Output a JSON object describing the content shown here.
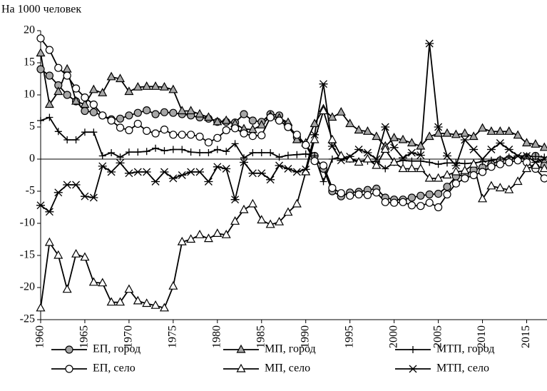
{
  "chart_data": {
    "type": "line",
    "y_label": "На 1000 человек",
    "x": [
      1960,
      1961,
      1962,
      1963,
      1964,
      1965,
      1966,
      1967,
      1968,
      1969,
      1970,
      1971,
      1972,
      1973,
      1974,
      1975,
      1976,
      1977,
      1978,
      1979,
      1980,
      1981,
      1982,
      1983,
      1984,
      1985,
      1986,
      1987,
      1988,
      1989,
      1990,
      1991,
      1992,
      1993,
      1994,
      1995,
      1996,
      1997,
      1998,
      1999,
      2000,
      2001,
      2002,
      2003,
      2004,
      2005,
      2006,
      2007,
      2008,
      2009,
      2010,
      2011,
      2012,
      2013,
      2014,
      2015,
      2016,
      2017
    ],
    "xlim": [
      1960,
      2017.3
    ],
    "xticks": [
      1960,
      1965,
      1970,
      1975,
      1980,
      1985,
      1990,
      1995,
      2000,
      2005,
      2010,
      2015
    ],
    "ylim": [
      -25,
      20
    ],
    "yticks": [
      -25,
      -20,
      -15,
      -10,
      -5,
      0,
      5,
      10,
      15,
      20
    ],
    "zero_line": true,
    "series": [
      {
        "name": "ЕП, город",
        "color": "#000000",
        "marker": "circle",
        "marker_fill": "#a6a6a6",
        "values": [
          14,
          13,
          11.5,
          10,
          9,
          7.5,
          7.3,
          6.8,
          6.2,
          6.3,
          6.8,
          7.2,
          7.6,
          7,
          7.3,
          7.2,
          7,
          6.8,
          6.5,
          6.3,
          5.8,
          5.8,
          5.7,
          7,
          6,
          5.8,
          7,
          6.8,
          5,
          3.4,
          2.2,
          0.5,
          -1.5,
          -5,
          -5.8,
          -5.2,
          -5.1,
          -4.8,
          -4.6,
          -6,
          -6.3,
          -6.3,
          -6,
          -5.7,
          -5.5,
          -5.4,
          -4.3,
          -2.7,
          -2.4,
          -1.7,
          -1.3,
          -0.8,
          -0.2,
          0,
          0.1,
          0.3,
          0.5,
          -1
        ]
      },
      {
        "name": "МП, город",
        "color": "#000000",
        "marker": "triangle",
        "marker_fill": "#a6a6a6",
        "values": [
          16.5,
          8.5,
          10.5,
          14,
          9,
          8.5,
          10.8,
          10.3,
          12.8,
          12.5,
          10.5,
          11.2,
          11.3,
          11.3,
          11.2,
          10.8,
          7.5,
          7.5,
          7,
          6.5,
          5.8,
          6,
          5.5,
          4.7,
          4.6,
          5.3,
          6.7,
          6.4,
          5.7,
          3,
          2.5,
          5.5,
          7.8,
          6.5,
          7.3,
          5.5,
          4.5,
          4.3,
          3.5,
          2,
          3.3,
          3,
          2.5,
          2,
          3.5,
          4,
          4,
          3.8,
          4,
          3.5,
          4.8,
          4.3,
          4.3,
          4.3,
          3.7,
          2.5,
          2.3,
          1.8
        ]
      },
      {
        "name": "МТП, город",
        "color": "#000000",
        "marker": "plus",
        "marker_fill": "#000000",
        "values": [
          6,
          6.5,
          4.3,
          3,
          3,
          4.2,
          4.2,
          0.5,
          1,
          0.3,
          1.1,
          1.1,
          1.2,
          1.7,
          1.3,
          1.5,
          1.5,
          1.1,
          1,
          1,
          1.5,
          1.2,
          2.4,
          0.2,
          1,
          1,
          1,
          0.3,
          0.6,
          0.7,
          0.8,
          0.5,
          -3.5,
          0,
          0.4,
          0,
          -0.3,
          -0.3,
          -0.4,
          -1.5,
          -0.5,
          -0.2,
          -0.3,
          -0.3,
          -0.5,
          -0.8,
          -0.6,
          -0.6,
          -0.7,
          -0.6,
          -0.4,
          -0.2,
          0,
          0.3,
          0.2,
          0.5,
          0.4,
          0.3
        ]
      },
      {
        "name": "ЕП, село",
        "color": "#000000",
        "marker": "circle",
        "marker_fill": "#ffffff",
        "values": [
          18.8,
          17,
          14.2,
          13,
          11,
          9.6,
          8.5,
          6.8,
          6,
          4.9,
          4.5,
          5.5,
          4.4,
          4,
          4.6,
          3.8,
          3.8,
          3.8,
          3.5,
          2.6,
          3.3,
          4.5,
          4.8,
          4,
          3.6,
          3.7,
          6.5,
          6,
          5,
          3.8,
          2.2,
          -0.3,
          -1,
          -4.5,
          -5.3,
          -5.7,
          -5.5,
          -5.6,
          -5.2,
          -6.7,
          -6.8,
          -6.7,
          -7.2,
          -7.3,
          -6.8,
          -7.5,
          -5.5,
          -3.8,
          -3,
          -2.5,
          -2,
          -1.2,
          -0.8,
          -0.5,
          -0.2,
          -0.5,
          -1.5,
          -3
        ]
      },
      {
        "name": "МП, село",
        "color": "#000000",
        "marker": "triangle",
        "marker_fill": "#ffffff",
        "values": [
          -23.2,
          -13,
          -15,
          -20.3,
          -14.8,
          -15.3,
          -19.2,
          -19.3,
          -22.3,
          -22.3,
          -20.3,
          -22.1,
          -22.5,
          -22.8,
          -23.2,
          -19.8,
          -12.9,
          -12.5,
          -11.8,
          -12.4,
          -11.6,
          -11.8,
          -9.7,
          -7.9,
          -7,
          -9.5,
          -10.2,
          -9.8,
          -8.3,
          -7,
          -2,
          3,
          7.5,
          3,
          0.5,
          0,
          -0.5,
          0,
          -1,
          1.5,
          -0.5,
          -1.5,
          -1.5,
          -1.5,
          -3,
          -3,
          -2.5,
          -2,
          -1.8,
          -0.8,
          -6.2,
          -4.2,
          -4.5,
          -4.8,
          -3.5,
          -1.5,
          -1,
          -1.5
        ]
      },
      {
        "name": "МТП, село",
        "color": "#000000",
        "marker": "asterisk",
        "marker_fill": "#000000",
        "values": [
          -7.2,
          -8.2,
          -5.2,
          -4,
          -4,
          -5.8,
          -6,
          -1.1,
          -2,
          -0.6,
          -2.2,
          -2,
          -2,
          -3.5,
          -2,
          -3,
          -2.5,
          -2,
          -2,
          -3.5,
          -1.2,
          -1.5,
          -6.3,
          -0.5,
          -2.2,
          -2.2,
          -3.2,
          -1,
          -1.5,
          -2,
          -1.6,
          3.8,
          11.7,
          2,
          -0.2,
          0.4,
          1.5,
          1,
          0,
          5,
          1.8,
          0.2,
          1,
          0.6,
          18,
          5,
          0.5,
          -1,
          3,
          1.5,
          0,
          1.5,
          2.5,
          1.5,
          0.5,
          0.5,
          -0.5,
          0
        ]
      }
    ]
  }
}
